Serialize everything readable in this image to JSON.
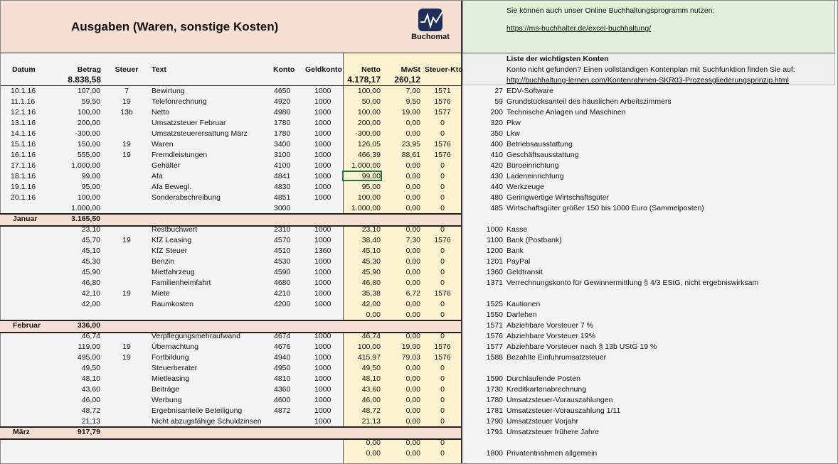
{
  "header": {
    "title": "Ausgaben (Waren, sonstige Kosten)",
    "logo_text": "Buchomat"
  },
  "promo": {
    "text": "Sie können auch unser Online Buchhaltungsprogramm nutzen:",
    "link": "https://ms-buchhalter.de/excel-buchhaltung/"
  },
  "accounts_header": {
    "title": "Liste der wichtigsten Konten",
    "text": "Konto nicht gefunden? Einen vollständigen Kontenplan mit Suchfunktion finden Sie auf:",
    "link": "http://buchhaltung-lernen.com/Kontenrahmen-SKR03-Prozessgliederungsprinzip.html"
  },
  "table": {
    "columns": [
      "Datum",
      "Betrag",
      "Steuer",
      "Text",
      "Konto",
      "Geldkonto",
      "Netto",
      "MwSt",
      "Steuer-Kto"
    ],
    "totals": {
      "betrag": "8.838,58",
      "netto": "4.178,17",
      "mwst": "260,12"
    },
    "rows": [
      {
        "cells": [
          "10.1.16",
          "107,00",
          "7",
          "Bewirtung",
          "4650",
          "1000",
          "100,00",
          "7,00",
          "1571"
        ],
        "account": [
          "27",
          "EDV-Software"
        ]
      },
      {
        "cells": [
          "11.1.16",
          "59,50",
          "19",
          "Telefonrechnung",
          "4920",
          "1000",
          "50,00",
          "9,50",
          "1576"
        ],
        "account": [
          "59",
          "Grundstücksanteil des häuslichen Arbeitszimmers"
        ]
      },
      {
        "cells": [
          "12.1.16",
          "100,00",
          "13b",
          "Netto",
          "4980",
          "1000",
          "100,00",
          "19,00",
          "1577"
        ],
        "account": [
          "200",
          "Technische Anlagen und Maschinen"
        ]
      },
      {
        "cells": [
          "13.1.16",
          "200,00",
          null,
          "Umsatzsteuer Februar",
          "1780",
          "1000",
          "200,00",
          "0,00",
          "0"
        ],
        "account": [
          "320",
          "Pkw"
        ]
      },
      {
        "cells": [
          "14.1.16",
          "-300,00",
          null,
          "Umsatzsteuerersattung März",
          "1780",
          "1000",
          "-300,00",
          "0,00",
          "0"
        ],
        "account": [
          "350",
          "Lkw"
        ]
      },
      {
        "cells": [
          "15.1.16",
          "150,00",
          "19",
          "Waren",
          "3400",
          "1000",
          "126,05",
          "23,95",
          "1576"
        ],
        "account": [
          "400",
          "Betriebsausstattung"
        ]
      },
      {
        "cells": [
          "16.1.16",
          "555,00",
          "19",
          "Fremdleistungen",
          "3100",
          "1000",
          "466,39",
          "88,61",
          "1576"
        ],
        "account": [
          "410",
          "Geschäftsausstattung"
        ]
      },
      {
        "cells": [
          "17.1.16",
          "1.000,00",
          null,
          "Gehälter",
          "4100",
          "1000",
          "1.000,00",
          "0,00",
          "0"
        ],
        "account": [
          "420",
          "Büroeinrichtung"
        ]
      },
      {
        "cells": [
          "18.1.16",
          "99,00",
          null,
          "Afa",
          "4841",
          "1000",
          "99,00",
          "0,00",
          "0"
        ],
        "account": [
          "430",
          "Ladeneinrichtung"
        ]
      },
      {
        "cells": [
          "19.1.16",
          "95,00",
          null,
          "Afa Bewegl.",
          "4830",
          "1000",
          "95,00",
          "0,00",
          "0"
        ],
        "account": [
          "440",
          "Werkzeuge"
        ]
      },
      {
        "cells": [
          "20.1.16",
          "100,00",
          null,
          "Sonderabschreibung",
          "4851",
          "1000",
          "100,00",
          "0,00",
          "0"
        ],
        "account": [
          "480",
          "Geringwertige Wirtschaftsgüter"
        ]
      },
      {
        "cells": [
          null,
          "1.000,00",
          null,
          null,
          "3000",
          null,
          "1.000,00",
          "0,00",
          "0"
        ],
        "account": [
          "485",
          "Wirtschaftsgüter größer 150  bis 1000 Euro (Sammelposten)"
        ]
      },
      {
        "month": "Januar",
        "total": "3.165,50"
      },
      {
        "cells": [
          null,
          "23,10",
          null,
          "Restbuchwert",
          "2310",
          "1000",
          "23,10",
          "0,00",
          "0"
        ],
        "account": [
          "1000",
          "Kasse"
        ]
      },
      {
        "cells": [
          null,
          "45,70",
          "19",
          "KfZ Leasing",
          "4570",
          "1000",
          "38,40",
          "7,30",
          "1576"
        ],
        "account": [
          "1100",
          "Bank (Postbank)"
        ]
      },
      {
        "cells": [
          null,
          "45,10",
          null,
          "KfZ Steuer",
          "4510",
          "1360",
          "45,10",
          "0,00",
          "0"
        ],
        "account": [
          "1200",
          "Bank"
        ]
      },
      {
        "cells": [
          null,
          "45,30",
          null,
          "Benzin",
          "4530",
          "1000",
          "45,30",
          "0,00",
          "0"
        ],
        "account": [
          "1201",
          "PayPal"
        ]
      },
      {
        "cells": [
          null,
          "45,90",
          null,
          "Mietfahrzeug",
          "4590",
          "1000",
          "45,90",
          "0,00",
          "0"
        ],
        "account": [
          "1360",
          "Geldtransit"
        ]
      },
      {
        "cells": [
          null,
          "46,80",
          null,
          "Familienheimfahrt",
          "4680",
          "1000",
          "46,80",
          "0,00",
          "0"
        ],
        "account": [
          "1371",
          "Verrechnungskonto für Gewinnermittlung § 4/3 EStG, nicht ergebniswirksam"
        ]
      },
      {
        "cells": [
          null,
          "42,10",
          "19",
          "Miete",
          "4210",
          "1000",
          "35,38",
          "6,72",
          "1576"
        ]
      },
      {
        "cells": [
          null,
          "42,00",
          null,
          "Raumkosten",
          "4200",
          "1000",
          "42,00",
          "0,00",
          "0"
        ],
        "account": [
          "1525",
          "Kautionen"
        ]
      },
      {
        "cells": [
          null,
          null,
          null,
          null,
          null,
          null,
          "0,00",
          "0,00",
          "0"
        ],
        "account": [
          "1550",
          "Darlehen"
        ]
      },
      {
        "month": "Februar",
        "total": "336,00",
        "account": [
          "1571",
          "Abziehbare Vorsteuer 7 %"
        ]
      },
      {
        "cells": [
          null,
          "46,74",
          null,
          "Verpflegungsmehraufwand",
          "4674",
          "1000",
          "46,74",
          "0,00",
          "0"
        ],
        "account": [
          "1576",
          "Abziehbare Vorsteuer 19%"
        ]
      },
      {
        "cells": [
          null,
          "119,00",
          "19",
          "Übernachtung",
          "4676",
          "1000",
          "100,00",
          "19,00",
          "1576"
        ],
        "account": [
          "1577",
          "Abziehbare Vorsteuer nach § 13b UStG 19 %"
        ]
      },
      {
        "cells": [
          null,
          "495,00",
          "19",
          "Fortbildung",
          "4940",
          "1000",
          "415,97",
          "79,03",
          "1576"
        ],
        "account": [
          "1588",
          "Bezahlte Einfuhrumsatzsteuer"
        ]
      },
      {
        "cells": [
          null,
          "49,50",
          null,
          "Steuerberater",
          "4950",
          "1000",
          "49,50",
          "0,00",
          "0"
        ]
      },
      {
        "cells": [
          null,
          "48,10",
          null,
          "Mietleasing",
          "4810",
          "1000",
          "48,10",
          "0,00",
          "0"
        ],
        "account": [
          "1590",
          "Durchlaufende Posten"
        ]
      },
      {
        "cells": [
          null,
          "43,60",
          null,
          "Beiträge",
          "4360",
          "1000",
          "43,60",
          "0,00",
          "0"
        ],
        "account": [
          "1730",
          "Kreditkartenabrechnung"
        ]
      },
      {
        "cells": [
          null,
          "46,00",
          null,
          "Werbung",
          "4600",
          "1000",
          "46,00",
          "0,00",
          "0"
        ],
        "account": [
          "1780",
          "Umsatzsteuer-Vorauszahlungen"
        ]
      },
      {
        "cells": [
          null,
          "48,72",
          null,
          "Ergebnisanteile Beteiligung",
          "4872",
          "1000",
          "48,72",
          "0,00",
          "0"
        ],
        "account": [
          "1781",
          "Umsatzsteuer-Vorauszahlung 1/11"
        ]
      },
      {
        "cells": [
          null,
          "21,13",
          null,
          "Nicht abzugsfähige Schuldzinsen",
          null,
          "1000",
          "21,13",
          "0,00",
          "0"
        ],
        "account": [
          "1790",
          "Umsatzsteuer Vorjahr"
        ]
      },
      {
        "month": "März",
        "total": "917,79",
        "account": [
          "1791",
          "Umsatzsteuer frühere Jahre"
        ]
      },
      {
        "cells": [
          null,
          null,
          null,
          null,
          null,
          null,
          "0,00",
          "0,00",
          "0"
        ]
      },
      {
        "cells": [
          null,
          null,
          null,
          null,
          null,
          null,
          "0,00",
          "0,00",
          "0"
        ],
        "account": [
          "1800",
          "Privatentnahmen allgemein"
        ]
      }
    ]
  }
}
